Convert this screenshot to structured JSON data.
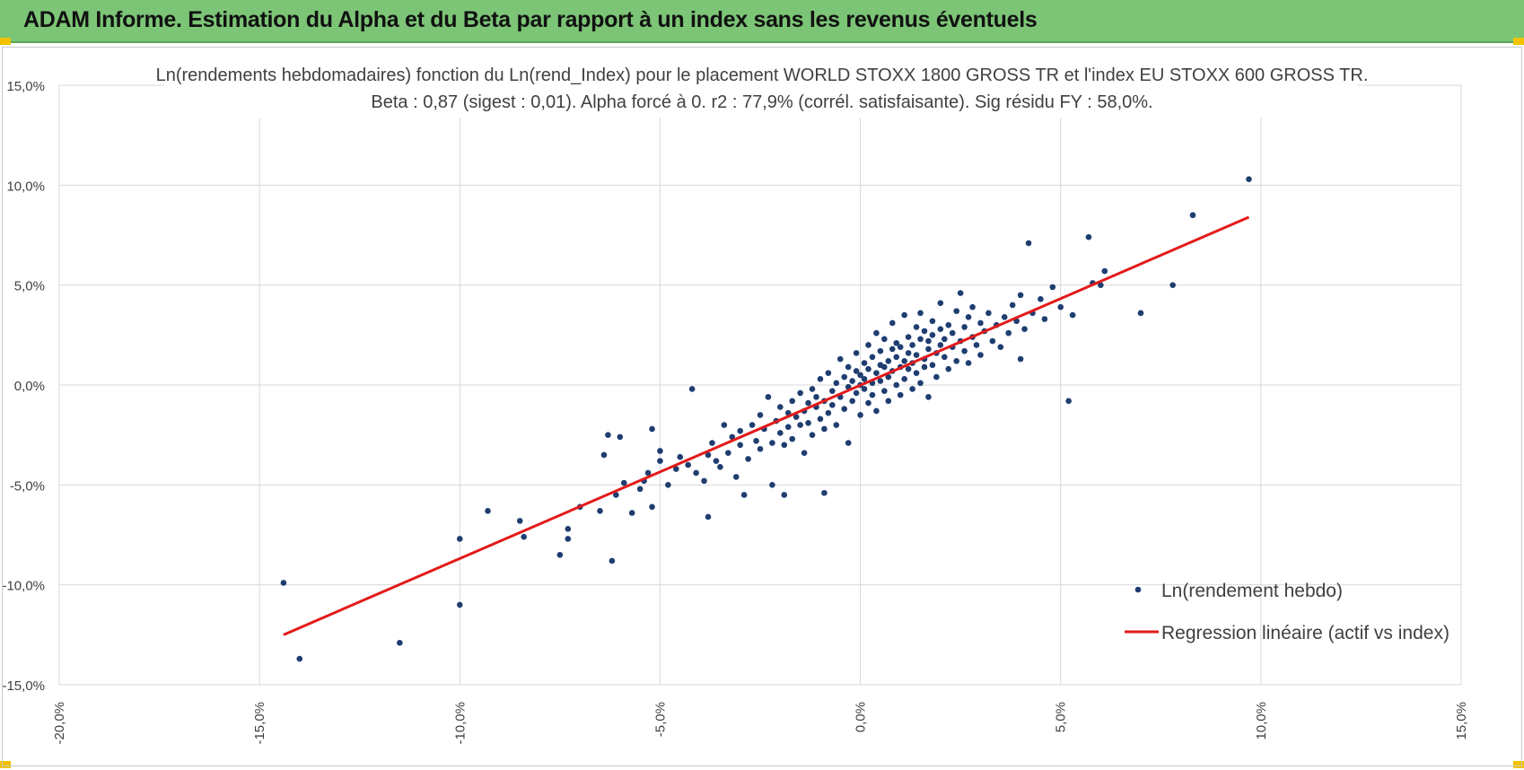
{
  "header": {
    "title": "ADAM Informe. Estimation du Alpha et du Beta par rapport à un index sans les revenus éventuels"
  },
  "colors": {
    "header_bg": "#7cc576",
    "accent_corner": "#f2c200",
    "points": "#1f3d70",
    "regression": "#e31a1a"
  },
  "chart_data": {
    "type": "scatter",
    "title": "Ln(rendements hebdomadaires) fonction du Ln(rend_Index) pour le placement WORLD STOXX 1800 GROSS TR et l'index EU STOXX 600 GROSS TR.",
    "subtitle": "Beta : 0,87 (sigest : 0,01). Alpha forcé à 0. r2 : 77,9% (corrél. satisfaisante). Sig résidu FY : 58,0%.",
    "xlabel": "",
    "ylabel": "",
    "xlim": [
      -20,
      15
    ],
    "ylim": [
      -15,
      15
    ],
    "x_ticks": [
      "-20,0%",
      "-15,0%",
      "-10,0%",
      "-5,0%",
      "0,0%",
      "5,0%",
      "10,0%",
      "15,0%"
    ],
    "y_ticks": [
      "15,0%",
      "10,0%",
      "5,0%",
      "0,0%",
      "-5,0%",
      "-10,0%",
      "-15,0%"
    ],
    "grid": true,
    "legend_position": "bottom-right",
    "series": [
      {
        "name": "Ln(rendement hebdo)",
        "kind": "scatter",
        "points": [
          [
            -14.4,
            -9.9
          ],
          [
            -14.0,
            -13.7
          ],
          [
            -11.5,
            -12.9
          ],
          [
            -10.0,
            -7.7
          ],
          [
            -10.0,
            -11.0
          ],
          [
            -9.3,
            -6.3
          ],
          [
            -8.5,
            -6.8
          ],
          [
            -8.4,
            -7.6
          ],
          [
            -7.5,
            -8.5
          ],
          [
            -7.3,
            -7.7
          ],
          [
            -7.3,
            -7.2
          ],
          [
            -7.0,
            -6.1
          ],
          [
            -6.5,
            -6.3
          ],
          [
            -6.4,
            -3.5
          ],
          [
            -6.3,
            -2.5
          ],
          [
            -6.2,
            -8.8
          ],
          [
            -6.1,
            -5.5
          ],
          [
            -6.0,
            -2.6
          ],
          [
            -5.9,
            -4.9
          ],
          [
            -5.7,
            -6.4
          ],
          [
            -5.5,
            -5.2
          ],
          [
            -5.4,
            -4.8
          ],
          [
            -5.3,
            -4.4
          ],
          [
            -5.2,
            -2.2
          ],
          [
            -5.2,
            -6.1
          ],
          [
            -5.0,
            -3.3
          ],
          [
            -5.0,
            -3.8
          ],
          [
            -4.8,
            -5.0
          ],
          [
            -4.6,
            -4.2
          ],
          [
            -4.5,
            -3.6
          ],
          [
            -4.3,
            -4.0
          ],
          [
            -4.2,
            -0.2
          ],
          [
            -4.1,
            -4.4
          ],
          [
            -3.9,
            -4.8
          ],
          [
            -3.8,
            -6.6
          ],
          [
            -3.8,
            -3.5
          ],
          [
            -3.7,
            -2.9
          ],
          [
            -3.6,
            -3.8
          ],
          [
            -3.5,
            -4.1
          ],
          [
            -3.4,
            -2.0
          ],
          [
            -3.3,
            -3.4
          ],
          [
            -3.2,
            -2.6
          ],
          [
            -3.1,
            -4.6
          ],
          [
            -3.0,
            -3.0
          ],
          [
            -3.0,
            -2.3
          ],
          [
            -2.9,
            -5.5
          ],
          [
            -2.8,
            -3.7
          ],
          [
            -2.7,
            -2.0
          ],
          [
            -2.6,
            -2.8
          ],
          [
            -2.5,
            -1.5
          ],
          [
            -2.5,
            -3.2
          ],
          [
            -2.4,
            -2.2
          ],
          [
            -2.3,
            -0.6
          ],
          [
            -2.2,
            -2.9
          ],
          [
            -2.2,
            -5.0
          ],
          [
            -2.1,
            -1.8
          ],
          [
            -2.0,
            -2.4
          ],
          [
            -2.0,
            -1.1
          ],
          [
            -1.9,
            -3.0
          ],
          [
            -1.9,
            -5.5
          ],
          [
            -1.8,
            -1.4
          ],
          [
            -1.8,
            -2.1
          ],
          [
            -1.7,
            -0.8
          ],
          [
            -1.7,
            -2.7
          ],
          [
            -1.6,
            -1.6
          ],
          [
            -1.5,
            -0.4
          ],
          [
            -1.5,
            -2.0
          ],
          [
            -1.4,
            -1.3
          ],
          [
            -1.4,
            -3.4
          ],
          [
            -1.3,
            -0.9
          ],
          [
            -1.3,
            -1.9
          ],
          [
            -1.2,
            -0.2
          ],
          [
            -1.2,
            -2.5
          ],
          [
            -1.1,
            -1.1
          ],
          [
            -1.1,
            -0.6
          ],
          [
            -1.0,
            -1.7
          ],
          [
            -1.0,
            0.3
          ],
          [
            -0.9,
            -5.4
          ],
          [
            -0.9,
            -0.8
          ],
          [
            -0.9,
            -2.2
          ],
          [
            -0.8,
            -1.4
          ],
          [
            -0.8,
            0.6
          ],
          [
            -0.7,
            -0.3
          ],
          [
            -0.7,
            -1.0
          ],
          [
            -0.6,
            -2.0
          ],
          [
            -0.6,
            0.1
          ],
          [
            -0.5,
            -0.6
          ],
          [
            -0.5,
            1.3
          ],
          [
            -0.4,
            -1.2
          ],
          [
            -0.4,
            0.4
          ],
          [
            -0.3,
            -0.1
          ],
          [
            -0.3,
            -2.9
          ],
          [
            -0.3,
            0.9
          ],
          [
            -0.2,
            -0.8
          ],
          [
            -0.2,
            0.2
          ],
          [
            -0.1,
            0.7
          ],
          [
            -0.1,
            -0.4
          ],
          [
            -0.1,
            1.6
          ],
          [
            0.0,
            0.0
          ],
          [
            0.0,
            -1.5
          ],
          [
            0.0,
            0.5
          ],
          [
            0.1,
            -0.2
          ],
          [
            0.1,
            1.1
          ],
          [
            0.1,
            0.3
          ],
          [
            0.2,
            -0.9
          ],
          [
            0.2,
            0.8
          ],
          [
            0.2,
            2.0
          ],
          [
            0.3,
            0.1
          ],
          [
            0.3,
            1.4
          ],
          [
            0.3,
            -0.5
          ],
          [
            0.4,
            0.6
          ],
          [
            0.4,
            2.6
          ],
          [
            0.4,
            -1.3
          ],
          [
            0.5,
            1.0
          ],
          [
            0.5,
            0.2
          ],
          [
            0.5,
            1.7
          ],
          [
            0.6,
            -0.3
          ],
          [
            0.6,
            0.9
          ],
          [
            0.6,
            2.3
          ],
          [
            0.7,
            0.4
          ],
          [
            0.7,
            1.2
          ],
          [
            0.7,
            -0.8
          ],
          [
            0.8,
            1.8
          ],
          [
            0.8,
            0.7
          ],
          [
            0.8,
            3.1
          ],
          [
            0.9,
            0.0
          ],
          [
            0.9,
            1.4
          ],
          [
            0.9,
            2.1
          ],
          [
            1.0,
            0.9
          ],
          [
            1.0,
            -0.5
          ],
          [
            1.0,
            1.9
          ],
          [
            1.1,
            1.2
          ],
          [
            1.1,
            3.5
          ],
          [
            1.1,
            0.3
          ],
          [
            1.2,
            2.4
          ],
          [
            1.2,
            0.8
          ],
          [
            1.2,
            1.6
          ],
          [
            1.3,
            -0.2
          ],
          [
            1.3,
            2.0
          ],
          [
            1.3,
            1.1
          ],
          [
            1.4,
            2.9
          ],
          [
            1.4,
            0.6
          ],
          [
            1.4,
            1.5
          ],
          [
            1.5,
            2.3
          ],
          [
            1.5,
            0.1
          ],
          [
            1.5,
            3.6
          ],
          [
            1.6,
            1.3
          ],
          [
            1.6,
            2.7
          ],
          [
            1.6,
            0.9
          ],
          [
            1.7,
            1.8
          ],
          [
            1.7,
            2.2
          ],
          [
            1.7,
            -0.6
          ],
          [
            1.8,
            1.0
          ],
          [
            1.8,
            3.2
          ],
          [
            1.8,
            2.5
          ],
          [
            1.9,
            1.6
          ],
          [
            1.9,
            0.4
          ],
          [
            2.0,
            2.0
          ],
          [
            2.0,
            2.8
          ],
          [
            2.0,
            4.1
          ],
          [
            2.1,
            1.4
          ],
          [
            2.1,
            2.3
          ],
          [
            2.2,
            0.8
          ],
          [
            2.2,
            3.0
          ],
          [
            2.3,
            1.9
          ],
          [
            2.3,
            2.6
          ],
          [
            2.4,
            1.2
          ],
          [
            2.4,
            3.7
          ],
          [
            2.5,
            2.2
          ],
          [
            2.5,
            4.6
          ],
          [
            2.6,
            1.7
          ],
          [
            2.6,
            2.9
          ],
          [
            2.7,
            3.4
          ],
          [
            2.7,
            1.1
          ],
          [
            2.8,
            2.4
          ],
          [
            2.8,
            3.9
          ],
          [
            2.9,
            2.0
          ],
          [
            3.0,
            3.1
          ],
          [
            3.0,
            1.5
          ],
          [
            3.1,
            2.7
          ],
          [
            3.2,
            3.6
          ],
          [
            3.3,
            2.2
          ],
          [
            3.4,
            3.0
          ],
          [
            3.5,
            1.9
          ],
          [
            3.6,
            3.4
          ],
          [
            3.7,
            2.6
          ],
          [
            3.8,
            4.0
          ],
          [
            3.9,
            3.2
          ],
          [
            4.0,
            1.3
          ],
          [
            4.0,
            4.5
          ],
          [
            4.1,
            2.8
          ],
          [
            4.2,
            7.1
          ],
          [
            4.3,
            3.6
          ],
          [
            4.5,
            4.3
          ],
          [
            4.6,
            3.3
          ],
          [
            4.8,
            4.9
          ],
          [
            5.0,
            3.9
          ],
          [
            5.2,
            -0.8
          ],
          [
            5.3,
            3.5
          ],
          [
            5.7,
            7.4
          ],
          [
            5.8,
            5.1
          ],
          [
            6.1,
            5.7
          ],
          [
            6.0,
            5.0
          ],
          [
            7.0,
            3.6
          ],
          [
            7.8,
            5.0
          ],
          [
            8.3,
            8.5
          ],
          [
            9.7,
            10.3
          ]
        ]
      },
      {
        "name": "Regression linéaire (actif vs index)",
        "kind": "line",
        "points": [
          [
            -14.4,
            -12.5
          ],
          [
            9.7,
            8.4
          ]
        ]
      }
    ]
  }
}
